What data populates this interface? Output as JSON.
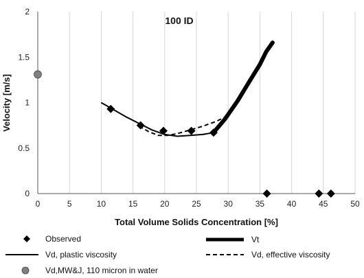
{
  "chart_data": {
    "type": "scatter",
    "title": "100 ID",
    "xlabel": "Total Volume Solids Concentration [%]",
    "ylabel": "Velocity [m/s]",
    "xlim": [
      0,
      50
    ],
    "ylim": [
      0,
      2
    ],
    "x_ticks": [
      "0",
      "5",
      "10",
      "15",
      "20",
      "25",
      "30",
      "35",
      "40",
      "45",
      "50"
    ],
    "y_ticks": [
      "0",
      "0.5",
      "1",
      "1.5",
      "2"
    ],
    "grid": "vertical",
    "legend_position": "bottom",
    "series": [
      {
        "name": "Observed",
        "style": "diamond",
        "color": "#000000",
        "x": [
          11.5,
          16.2,
          19.8,
          24.2,
          27.7,
          36.1,
          44.3,
          46.2
        ],
        "y": [
          0.93,
          0.75,
          0.69,
          0.69,
          0.67,
          0.0,
          0.0,
          0.0
        ]
      },
      {
        "name": "Vt",
        "style": "thick-line",
        "color": "#000000",
        "x": [
          27.7,
          29.5,
          31.5,
          33.5,
          35.0,
          36.0,
          37.0
        ],
        "y": [
          0.67,
          0.82,
          1.02,
          1.25,
          1.42,
          1.56,
          1.66
        ]
      },
      {
        "name": "Vd, plastic viscosity",
        "style": "solid-line",
        "color": "#000000",
        "x": [
          10.0,
          12.0,
          14.0,
          16.0,
          18.0,
          20.0,
          22.0,
          24.0,
          26.0,
          27.7
        ],
        "y": [
          1.0,
          0.92,
          0.84,
          0.77,
          0.7,
          0.65,
          0.63,
          0.64,
          0.65,
          0.67
        ]
      },
      {
        "name": "Vd, effective viscosity",
        "style": "dashed-line",
        "color": "#000000",
        "x": [
          16.0,
          17.5,
          19.0,
          20.5,
          22.0,
          24.0,
          26.0,
          28.0,
          29.5
        ],
        "y": [
          0.74,
          0.68,
          0.64,
          0.64,
          0.66,
          0.7,
          0.74,
          0.79,
          0.84
        ]
      },
      {
        "name": "Vd,MW&J, 110 micron in water",
        "style": "circle",
        "color": "#808080",
        "x": [
          0
        ],
        "y": [
          1.31
        ]
      }
    ]
  }
}
